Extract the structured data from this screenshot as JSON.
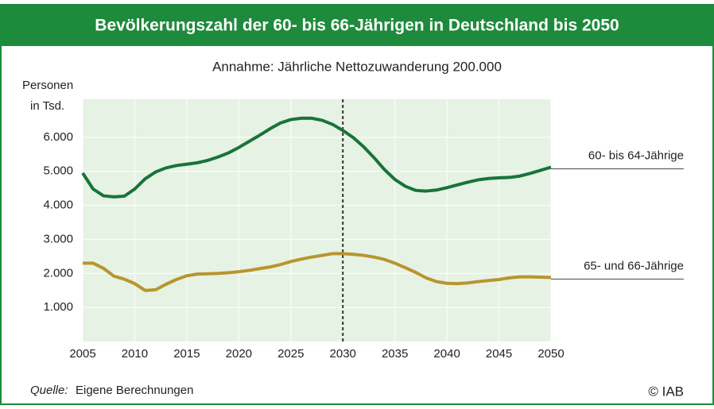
{
  "chart_data": {
    "type": "line",
    "title": "Bevölkerungszahl der 60- bis 66-Jährigen in Deutschland bis 2050",
    "subtitle": "Annahme: Jährliche Nettozuwanderung 200.000",
    "ylabel": [
      "Personen",
      "in Tsd."
    ],
    "x": [
      2005,
      2006,
      2007,
      2008,
      2009,
      2010,
      2011,
      2012,
      2013,
      2014,
      2015,
      2016,
      2017,
      2018,
      2019,
      2020,
      2021,
      2022,
      2023,
      2024,
      2025,
      2026,
      2027,
      2028,
      2029,
      2030,
      2031,
      2032,
      2033,
      2034,
      2035,
      2036,
      2037,
      2038,
      2039,
      2040,
      2041,
      2042,
      2043,
      2044,
      2045,
      2046,
      2047,
      2048,
      2049,
      2050
    ],
    "series": [
      {
        "name": "60- bis 64-Jährige",
        "color": "#17743a",
        "values": [
          4950,
          4480,
          4280,
          4250,
          4270,
          4480,
          4780,
          4980,
          5100,
          5170,
          5210,
          5250,
          5320,
          5420,
          5540,
          5700,
          5880,
          6060,
          6250,
          6420,
          6520,
          6560,
          6560,
          6500,
          6380,
          6200,
          5990,
          5720,
          5400,
          5050,
          4760,
          4560,
          4440,
          4420,
          4450,
          4520,
          4600,
          4680,
          4750,
          4790,
          4810,
          4820,
          4860,
          4940,
          5030,
          5120
        ]
      },
      {
        "name": "65- und 66-Jährige",
        "color": "#b8952e",
        "values": [
          2300,
          2300,
          2150,
          1920,
          1830,
          1700,
          1500,
          1520,
          1680,
          1820,
          1930,
          1980,
          1990,
          2000,
          2020,
          2050,
          2090,
          2140,
          2190,
          2260,
          2350,
          2420,
          2480,
          2530,
          2580,
          2580,
          2560,
          2530,
          2480,
          2410,
          2300,
          2170,
          2030,
          1870,
          1760,
          1710,
          1700,
          1720,
          1760,
          1790,
          1820,
          1870,
          1900,
          1900,
          1890,
          1880
        ]
      }
    ],
    "xlim": [
      2005,
      2050
    ],
    "xticks": [
      2005,
      2010,
      2015,
      2020,
      2025,
      2030,
      2035,
      2040,
      2045,
      2050
    ],
    "ylim": [
      0,
      7000
    ],
    "yticks": [
      {
        "value": 1000,
        "label": "1.000"
      },
      {
        "value": 2000,
        "label": "2.000"
      },
      {
        "value": 3000,
        "label": "3.000"
      },
      {
        "value": 4000,
        "label": "4.000"
      },
      {
        "value": 5000,
        "label": "5.000"
      },
      {
        "value": 6000,
        "label": "6.000"
      }
    ],
    "vline": 2030,
    "source_label": "Quelle:",
    "source": "Eigene Berechnungen",
    "copyright": "© IAB"
  }
}
